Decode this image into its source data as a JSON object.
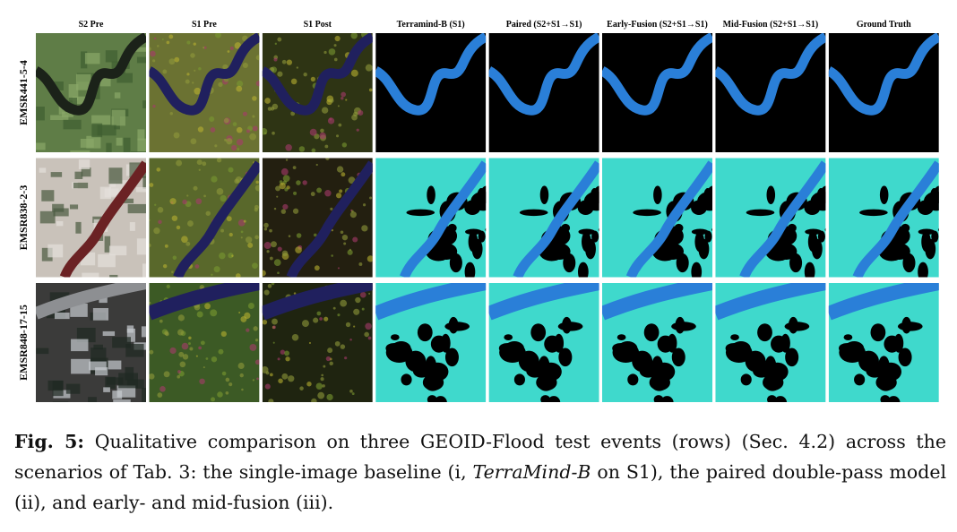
{
  "figure": {
    "columns": [
      "S2 Pre",
      "S1 Pre",
      "S1 Post",
      "Terramind-B (S1)",
      "Paired (S2+S1→S1)",
      "Early-Fusion (S2+S1→S1)",
      "Mid-Fusion (S2+S1→S1)",
      "Ground Truth"
    ],
    "rows": [
      "EMSR441-5-4",
      "EMSR838-2-3",
      "EMSR848-17-15"
    ]
  },
  "caption": {
    "label": "Fig. 5:",
    "segments": [
      " Qualitative comparison on three GEOID-Flood test events (rows) (Sec. 4.2) across the scenarios of Tab. 3: the single-image baseline (i, ",
      "TerraMind-B",
      " on S1), the paired double-pass model (ii), and early- and mid-fusion (iii)."
    ]
  }
}
